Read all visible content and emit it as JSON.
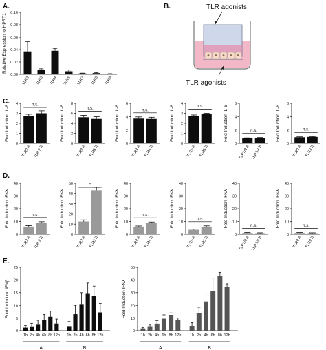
{
  "colors": {
    "black_bar": "#0d0d0d",
    "gray_bar": "#999999",
    "dark_gray_bar": "#555555",
    "well_pink": "#f3b8c8",
    "well_blue": "#cfd8ea",
    "cell": "#f6dcc8"
  },
  "panel_labels": {
    "A": "A.",
    "B": "B.",
    "C": "C.",
    "D": "D.",
    "E": "E."
  },
  "diagram": {
    "top_label": "TLR agonists",
    "bottom_label": "TLR agonists"
  },
  "chart_data": [
    {
      "id": "A",
      "type": "bar",
      "ylabel": "Relative Expression to HPRT1",
      "ylim": [
        0,
        0.1
      ],
      "yticks": [
        "0.00",
        "0.02",
        "0.04",
        "0.06",
        "0.08",
        "0.10"
      ],
      "categories": [
        "TLR2",
        "TLR3",
        "TLR4",
        "TLR5",
        "TLR7",
        "TLR8",
        "TLR9"
      ],
      "values": [
        0.037,
        0.007,
        0.038,
        0.005,
        0.0015,
        0.002,
        0.0008
      ],
      "errors": [
        0.016,
        0.002,
        0.004,
        0.002,
        0.0005,
        0.001,
        0.0003
      ]
    },
    {
      "id": "C1",
      "type": "bar",
      "ylabel": "Fold Induction IL-6",
      "ylim": [
        0,
        4
      ],
      "yticks": [
        "0",
        "1",
        "2",
        "3",
        "4"
      ],
      "categories": [
        "TLR2 A",
        "TLR 2 B"
      ],
      "values": [
        2.7,
        3.0
      ],
      "errors": [
        0.2,
        0.25
      ],
      "sig": "n.s."
    },
    {
      "id": "C2",
      "type": "bar",
      "ylabel": "Fold Induction IL-6",
      "ylim": [
        0,
        8
      ],
      "yticks": [
        "0",
        "2",
        "4",
        "6",
        "8"
      ],
      "categories": [
        "TLR3 A",
        "TLR3 B"
      ],
      "values": [
        5.2,
        5.0
      ],
      "errors": [
        0.4,
        0.3
      ],
      "sig": "n.s."
    },
    {
      "id": "C3",
      "type": "bar",
      "ylabel": "Fold Induction IL-6",
      "ylim": [
        0,
        6
      ],
      "yticks": [
        "0",
        "2",
        "4",
        "6"
      ],
      "categories": [
        "TLR4 A",
        "TLR4 B"
      ],
      "values": [
        3.8,
        3.75
      ],
      "errors": [
        0.15,
        0.15
      ],
      "sig": "n.s."
    },
    {
      "id": "C4",
      "type": "bar",
      "ylabel": "Fold Induction IL-6",
      "ylim": [
        0,
        4
      ],
      "yticks": [
        "0",
        "1",
        "2",
        "3",
        "4"
      ],
      "categories": [
        "TLR5 A",
        "TLR5 B"
      ],
      "values": [
        2.75,
        2.9
      ],
      "errors": [
        0.08,
        0.1
      ],
      "sig": "n.s."
    },
    {
      "id": "C5",
      "type": "bar",
      "ylabel": "Fold Induction IL-6",
      "ylim": [
        0,
        6
      ],
      "yticks": [
        "0",
        "2",
        "4",
        "6"
      ],
      "categories": [
        "TLR7/8 A",
        "TLR7/8 B"
      ],
      "values": [
        0.75,
        0.8
      ],
      "errors": [
        0.06,
        0.06
      ],
      "sig": "n.s."
    },
    {
      "id": "C6",
      "type": "bar",
      "ylabel": "Fold Induction IL-6",
      "ylim": [
        0,
        6
      ],
      "yticks": [
        "0",
        "2",
        "4",
        "6"
      ],
      "categories": [
        "TLR9 A",
        "TLR9 B"
      ],
      "values": [
        0.9,
        0.95
      ],
      "errors": [
        0.06,
        0.06
      ],
      "sig": "n.s."
    },
    {
      "id": "D1",
      "type": "bar",
      "ylabel": "Fold Induction IFNλ",
      "ylim": [
        0,
        40
      ],
      "yticks": [
        "0",
        "10",
        "20",
        "30",
        "40"
      ],
      "categories": [
        "TLR2 A",
        "TLR 2 B"
      ],
      "values": [
        6,
        9
      ],
      "errors": [
        0.8,
        0.8
      ],
      "sig": "n.s."
    },
    {
      "id": "D2",
      "type": "bar",
      "ylabel": "Fold Induction IFNλ",
      "ylim": [
        0,
        50
      ],
      "yticks": [
        "0",
        "10",
        "20",
        "30",
        "40",
        "50"
      ],
      "categories": [
        "TLR3 A",
        "TLR3 B"
      ],
      "values": [
        12.5,
        43
      ],
      "errors": [
        1.5,
        3
      ],
      "sig": "*"
    },
    {
      "id": "D3",
      "type": "bar",
      "ylabel": "Fold Induction IFNλ",
      "ylim": [
        0,
        40
      ],
      "yticks": [
        "0",
        "10",
        "20",
        "30",
        "40"
      ],
      "categories": [
        "TLR4 A",
        "TLR4 B"
      ],
      "values": [
        6,
        9
      ],
      "errors": [
        0.5,
        0.6
      ],
      "sig": "n.s."
    },
    {
      "id": "D4",
      "type": "bar",
      "ylabel": "Fold Induction IFNλ",
      "ylim": [
        0,
        40
      ],
      "yticks": [
        "0",
        "10",
        "20",
        "30",
        "40"
      ],
      "categories": [
        "TLR5 A",
        "TLR5 B"
      ],
      "values": [
        3.5,
        6
      ],
      "errors": [
        0.5,
        0.6
      ],
      "sig": "n.s."
    },
    {
      "id": "D5",
      "type": "bar",
      "ylabel": "Fold Induction IFNλ",
      "ylim": [
        0,
        40
      ],
      "yticks": [
        "0",
        "10",
        "20",
        "30",
        "40"
      ],
      "categories": [
        "TLR7/8 A",
        "TLR7/8 B"
      ],
      "values": [
        1,
        0.8
      ],
      "errors": [
        0.3,
        0.3
      ],
      "sig": "n.s."
    },
    {
      "id": "D6",
      "type": "bar",
      "ylabel": "Fold Induction IFNλ",
      "ylim": [
        0,
        40
      ],
      "yticks": [
        "0",
        "10",
        "20",
        "30",
        "40"
      ],
      "categories": [
        "TLR9 A",
        "TLR9 B"
      ],
      "values": [
        1,
        0.8
      ],
      "errors": [
        0.3,
        0.3
      ],
      "sig": "n.s."
    },
    {
      "id": "E1",
      "type": "bar",
      "ylabel": "Fold Induction IFNβ",
      "ylim": [
        0,
        25
      ],
      "yticks": [
        "0",
        "5",
        "10",
        "15",
        "20",
        "25"
      ],
      "categories": [
        "1h",
        "2h",
        "4h",
        "6h",
        "8h",
        "12h",
        "1h",
        "2h",
        "4h",
        "6h",
        "8h",
        "12h"
      ],
      "groups": [
        "A",
        "B"
      ],
      "values": [
        1.2,
        1.7,
        2.6,
        4.2,
        5.5,
        2.8,
        1.8,
        6.5,
        10.5,
        14.8,
        13.8,
        7.2
      ],
      "errors": [
        0.8,
        1.2,
        1.5,
        2.2,
        2.2,
        1.8,
        1.8,
        3.5,
        4.5,
        4.0,
        3.8,
        3.5
      ]
    },
    {
      "id": "E2",
      "type": "bar",
      "ylabel": "Fold Induction IFNλ",
      "ylim": [
        0,
        50
      ],
      "yticks": [
        "0",
        "10",
        "20",
        "30",
        "40",
        "50"
      ],
      "categories": [
        "1h",
        "2h",
        "4h",
        "6h",
        "8h",
        "12h",
        "1h",
        "2h",
        "4h",
        "6h",
        "8h",
        "12h"
      ],
      "groups": [
        "A",
        "B"
      ],
      "values": [
        1.8,
        3.5,
        5.5,
        9.5,
        12.5,
        8.5,
        3.8,
        14,
        23,
        31.5,
        43,
        34.5
      ],
      "errors": [
        0.8,
        1.5,
        2.5,
        3.0,
        1.5,
        1.5,
        2.5,
        4.5,
        6.0,
        10.0,
        3.0,
        2.5
      ]
    }
  ]
}
